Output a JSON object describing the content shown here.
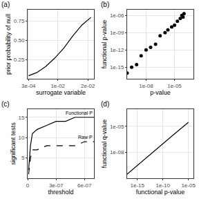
{
  "chart_data": [
    {
      "type": "line",
      "title": "(a)",
      "x_label": "surrogate variable",
      "y_label": "prior probability of null",
      "x": [
        0.0003,
        0.003,
        0.006,
        0.009,
        0.012,
        0.015,
        0.018,
        0.021
      ],
      "values": [
        0.04,
        0.08,
        0.16,
        0.27,
        0.4,
        0.56,
        0.7,
        0.8
      ],
      "color": "#000000",
      "xlim": [
        0,
        0.022
      ],
      "xticks": [
        {
          "value": 0.0003,
          "label": "3e-04"
        },
        {
          "value": 0.01,
          "label": "1e-02"
        },
        {
          "value": 0.02,
          "label": "2e-02"
        }
      ],
      "ylim": [
        0,
        0.9
      ],
      "yticks": [
        0.25,
        {
          "value": 0.5,
          "label": "0.50"
        },
        0.75
      ],
      "grid": true
    },
    {
      "type": "scatter",
      "title": "(b)",
      "x_label": "p-value",
      "y_label": "functional p-value",
      "x": [
        1e-10,
        3e-10,
        1e-09,
        3e-09,
        1e-08,
        3e-08,
        1e-07,
        3e-07,
        1e-06,
        2e-06,
        5e-06,
        1e-05,
        2e-05,
        4e-05,
        6e-05,
        8e-05,
        0.0001
      ],
      "values": [
        1e-16,
        1e-15,
        3e-15,
        1e-13,
        1e-12,
        3e-12,
        1e-11,
        3e-10,
        1e-09,
        3e-09,
        1e-08,
        2e-08,
        1e-07,
        3e-07,
        1e-06,
        5e-07,
        2e-06
      ],
      "color": "#000000",
      "marker": "circle",
      "xlim": [
        1e-10,
        0.001
      ],
      "xticks": [
        {
          "value": 1e-08,
          "label": "1e-08"
        },
        {
          "value": 1e-05,
          "label": "1e-05"
        }
      ],
      "ylim": [
        1e-17,
        1e-05
      ],
      "yticks": [
        {
          "value": 1e-15,
          "label": "1e-15"
        },
        {
          "value": 1e-12,
          "label": "1e-12"
        },
        {
          "value": 1e-09,
          "label": "1e-09"
        },
        {
          "value": 1e-06,
          "label": "1e-06"
        }
      ],
      "log": true,
      "grid": true
    },
    {
      "type": "line",
      "title": "(c)",
      "x_label": "threshold",
      "y_label": "significant tests",
      "x": [
        1e-08,
        3e-08,
        5e-08,
        1e-07,
        2e-07,
        3e-07,
        4e-07,
        5e-07,
        6e-07,
        7e-07
      ],
      "series": [
        {
          "name": "Functional P",
          "color": "#000000",
          "line_style": "solid",
          "values": [
            2,
            8,
            11,
            12,
            13,
            14,
            14,
            15,
            15,
            15
          ]
        },
        {
          "name": "Raw P",
          "color": "#000000",
          "line_style": "dash",
          "values": [
            1,
            5,
            7,
            7,
            8,
            8,
            8,
            8,
            9,
            9
          ]
        }
      ],
      "xlim": [
        0,
        7e-07
      ],
      "xticks": [
        0,
        {
          "value": 3e-07,
          "label": "3e-07"
        },
        {
          "value": 6e-07,
          "label": "6e-07"
        }
      ],
      "ylim": [
        0,
        17
      ],
      "yticks": [
        5,
        10,
        15
      ],
      "grid": true
    },
    {
      "type": "line",
      "title": "(d)",
      "x_label": "functional p-value",
      "y_label": "functional q-value",
      "x": [
        1e-17,
        1e-14,
        1e-11,
        1e-08,
        1e-05
      ],
      "values": [
        3e-11,
        1e-09,
        3e-08,
        1e-06,
        3e-05
      ],
      "color": "#000000",
      "xlim": [
        1e-17,
        0.0001
      ],
      "xticks": [
        {
          "value": 1e-15,
          "label": "1e-15"
        },
        {
          "value": 1e-10,
          "label": "1e-10"
        },
        {
          "value": 1e-05,
          "label": "1e-05"
        }
      ],
      "ylim": [
        1e-11,
        0.001
      ],
      "yticks": [
        {
          "value": 1e-08,
          "label": "1e-08"
        },
        {
          "value": 1e-05,
          "label": "1e-05"
        }
      ],
      "log": true,
      "grid": true
    }
  ]
}
